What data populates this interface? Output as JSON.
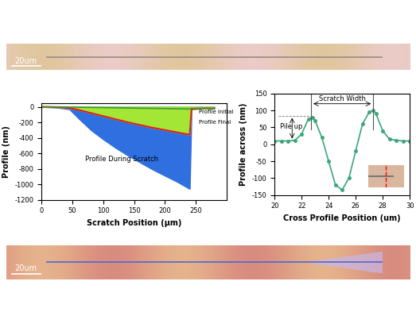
{
  "images": [
    {
      "scale_bar": "20um"
    },
    {
      "scale_bar": "20um"
    }
  ],
  "chart_data": [
    {
      "type": "area",
      "xlabel": "Scratch Position (µm)",
      "ylabel": "Profile (nm)",
      "x": [
        0,
        25,
        45,
        60,
        80,
        100,
        120,
        140,
        160,
        180,
        200,
        220,
        240,
        243,
        260,
        280
      ],
      "series": [
        {
          "name": "Profile During Scratch",
          "color": "#2f6fe0",
          "type": "area",
          "values": [
            0,
            -10,
            -30,
            -150,
            -300,
            -420,
            -530,
            -630,
            -720,
            -810,
            -890,
            -970,
            -1060,
            -30,
            -20,
            -20
          ]
        },
        {
          "name": "Profile Final",
          "color": "#e02020",
          "type": "line",
          "values": [
            0,
            -5,
            -15,
            -40,
            -80,
            -120,
            -160,
            -200,
            -235,
            -270,
            -300,
            -330,
            -360,
            -30,
            -20,
            -20
          ]
        },
        {
          "name": "Profile Initial",
          "color": "#3c9a2c",
          "type": "line",
          "values": [
            0,
            0,
            -3,
            -5,
            -8,
            -10,
            -12,
            -15,
            -18,
            -20,
            -22,
            -25,
            -28,
            -20,
            -20,
            -20
          ]
        }
      ],
      "xlim": [
        0,
        300
      ],
      "xticks": [
        0,
        50,
        100,
        150,
        200,
        250
      ],
      "ylim": [
        -1200,
        50
      ],
      "yticks": [
        -1200,
        -1000,
        -800,
        -600,
        -400,
        -200,
        0
      ]
    },
    {
      "type": "line",
      "xlabel": "Cross Profile Position (um)",
      "ylabel": "Profile across (nm)",
      "x": [
        20,
        20.5,
        21,
        21.5,
        22,
        22.5,
        22.8,
        23,
        23.5,
        24,
        24.5,
        25,
        25.5,
        26,
        26.5,
        27,
        27.3,
        27.5,
        28,
        28.5,
        29,
        29.5,
        30
      ],
      "values": [
        10,
        10,
        10,
        12,
        30,
        75,
        80,
        70,
        20,
        -50,
        -120,
        -135,
        -100,
        -20,
        60,
        95,
        100,
        90,
        40,
        15,
        12,
        10,
        10
      ],
      "color": "#3aa67a",
      "marker": "o",
      "annotations": [
        "Scratch Width",
        "Pile up"
      ],
      "width_markers": [
        22.7,
        27.3
      ],
      "pile_up": {
        "base": 10,
        "peak": 85
      },
      "xlim": [
        20,
        30
      ],
      "xticks": [
        20,
        22,
        24,
        26,
        28,
        30
      ],
      "ylim": [
        -150,
        150
      ],
      "yticks": [
        -150,
        -100,
        -50,
        0,
        50,
        100,
        150
      ]
    }
  ]
}
